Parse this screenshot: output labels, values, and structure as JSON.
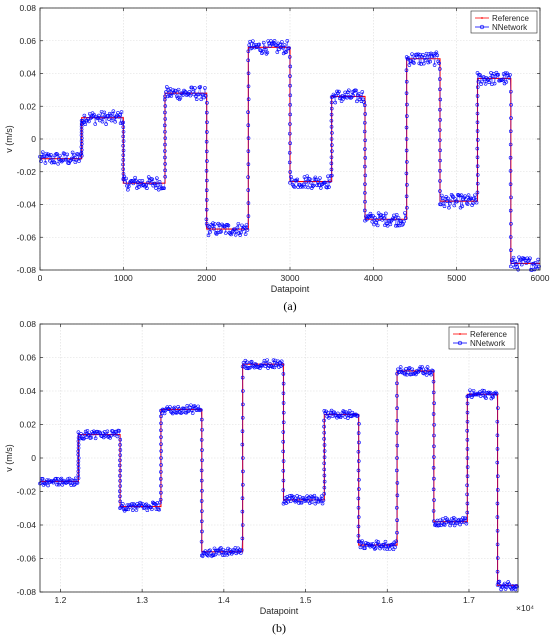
{
  "chart_data": [
    {
      "type": "line",
      "panel_label": "(a)",
      "xlabel": "Datapoint",
      "ylabel": "v (m/s)",
      "xlim": [
        0,
        6000
      ],
      "ylim": [
        -0.08,
        0.08
      ],
      "x_ticks": [
        "0",
        "1000",
        "2000",
        "3000",
        "4000",
        "5000",
        "6000"
      ],
      "y_ticks": [
        "-0.08",
        "-0.06",
        "-0.04",
        "-0.02",
        "0",
        "0.02",
        "0.04",
        "0.06",
        "0.08"
      ],
      "x_tick_values": [
        0,
        1000,
        2000,
        3000,
        4000,
        5000,
        6000
      ],
      "y_tick_values": [
        -0.08,
        -0.06,
        -0.04,
        -0.02,
        0,
        0.02,
        0.04,
        0.06,
        0.08
      ],
      "grid": true,
      "legend_position": "top-right",
      "legend": [
        "Reference",
        "NNetwork"
      ],
      "colors": {
        "Reference": "#ff0000",
        "NNetwork": "#0000ff"
      },
      "x_scale_note": "",
      "segments": [
        {
          "x_start": 0,
          "x_end": 500,
          "value": -0.012
        },
        {
          "x_start": 500,
          "x_end": 1000,
          "value": 0.013
        },
        {
          "x_start": 1000,
          "x_end": 1500,
          "value": -0.027
        },
        {
          "x_start": 1500,
          "x_end": 2000,
          "value": 0.028
        },
        {
          "x_start": 2000,
          "x_end": 2500,
          "value": -0.055
        },
        {
          "x_start": 2500,
          "x_end": 3000,
          "value": 0.056
        },
        {
          "x_start": 3000,
          "x_end": 3500,
          "value": -0.026
        },
        {
          "x_start": 3500,
          "x_end": 3900,
          "value": 0.026
        },
        {
          "x_start": 3900,
          "x_end": 4400,
          "value": -0.049
        },
        {
          "x_start": 4400,
          "x_end": 4800,
          "value": 0.049
        },
        {
          "x_start": 4800,
          "x_end": 5250,
          "value": -0.038
        },
        {
          "x_start": 5250,
          "x_end": 5650,
          "value": 0.037
        },
        {
          "x_start": 5650,
          "x_end": 6000,
          "value": -0.076
        }
      ],
      "noise_amplitude": 0.004
    },
    {
      "type": "line",
      "panel_label": "(b)",
      "xlabel": "Datapoint",
      "ylabel": "v (m/s)",
      "xlim": [
        1.175,
        1.76
      ],
      "ylim": [
        -0.08,
        0.08
      ],
      "x_ticks": [
        "1.2",
        "1.3",
        "1.4",
        "1.5",
        "1.6",
        "1.7"
      ],
      "y_ticks": [
        "-0.08",
        "-0.06",
        "-0.04",
        "-0.02",
        "0",
        "0.02",
        "0.04",
        "0.06",
        "0.08"
      ],
      "x_tick_values": [
        1.2,
        1.3,
        1.4,
        1.5,
        1.6,
        1.7
      ],
      "y_tick_values": [
        -0.08,
        -0.06,
        -0.04,
        -0.02,
        0,
        0.02,
        0.04,
        0.06,
        0.08
      ],
      "grid": true,
      "legend_position": "top-right",
      "legend": [
        "Reference",
        "NNetwork"
      ],
      "colors": {
        "Reference": "#ff0000",
        "NNetwork": "#0000ff"
      },
      "x_scale_note": "×10⁴",
      "segments": [
        {
          "x_start": 1.175,
          "x_end": 1.222,
          "value": -0.014
        },
        {
          "x_start": 1.222,
          "x_end": 1.273,
          "value": 0.014
        },
        {
          "x_start": 1.273,
          "x_end": 1.323,
          "value": -0.029
        },
        {
          "x_start": 1.323,
          "x_end": 1.373,
          "value": 0.029
        },
        {
          "x_start": 1.373,
          "x_end": 1.423,
          "value": -0.056
        },
        {
          "x_start": 1.423,
          "x_end": 1.473,
          "value": 0.056
        },
        {
          "x_start": 1.473,
          "x_end": 1.523,
          "value": -0.025
        },
        {
          "x_start": 1.523,
          "x_end": 1.565,
          "value": 0.026
        },
        {
          "x_start": 1.565,
          "x_end": 1.612,
          "value": -0.052
        },
        {
          "x_start": 1.612,
          "x_end": 1.657,
          "value": 0.052
        },
        {
          "x_start": 1.657,
          "x_end": 1.698,
          "value": -0.038
        },
        {
          "x_start": 1.698,
          "x_end": 1.735,
          "value": 0.038
        },
        {
          "x_start": 1.735,
          "x_end": 1.76,
          "value": -0.076
        }
      ],
      "noise_amplitude": 0.0025
    }
  ]
}
